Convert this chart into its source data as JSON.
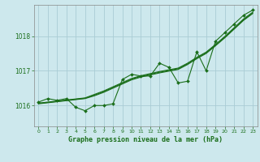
{
  "bg_color": "#cde8ed",
  "grid_color": "#aaccd4",
  "line_color": "#1a6e1a",
  "title": "Graphe pression niveau de la mer (hPa)",
  "xlim": [
    -0.5,
    23.5
  ],
  "ylim": [
    1015.4,
    1018.9
  ],
  "yticks": [
    1016,
    1017,
    1018
  ],
  "xtick_labels": [
    "0",
    "1",
    "2",
    "3",
    "4",
    "5",
    "6",
    "7",
    "8",
    "9",
    "10",
    "11",
    "12",
    "13",
    "14",
    "15",
    "16",
    "17",
    "18",
    "19",
    "20",
    "21",
    "22",
    "23"
  ],
  "main_series": [
    1016.1,
    1016.2,
    1016.15,
    1016.2,
    1015.95,
    1015.85,
    1016.0,
    1016.0,
    1016.05,
    1016.75,
    1016.9,
    1016.85,
    1016.85,
    1017.22,
    1017.1,
    1016.65,
    1016.7,
    1017.55,
    1017.0,
    1017.85,
    1018.1,
    1018.35,
    1018.6,
    1018.75
  ],
  "trend1": [
    1016.05,
    1016.08,
    1016.11,
    1016.14,
    1016.17,
    1016.2,
    1016.28,
    1016.38,
    1016.5,
    1016.62,
    1016.74,
    1016.82,
    1016.88,
    1016.94,
    1016.99,
    1017.04,
    1017.18,
    1017.35,
    1017.5,
    1017.72,
    1017.95,
    1018.2,
    1018.45,
    1018.65
  ],
  "trend2": [
    1016.06,
    1016.09,
    1016.12,
    1016.15,
    1016.18,
    1016.21,
    1016.3,
    1016.4,
    1016.52,
    1016.64,
    1016.76,
    1016.84,
    1016.9,
    1016.96,
    1017.01,
    1017.06,
    1017.2,
    1017.37,
    1017.52,
    1017.74,
    1017.97,
    1018.22,
    1018.47,
    1018.67
  ],
  "trend3": [
    1016.07,
    1016.1,
    1016.13,
    1016.16,
    1016.19,
    1016.22,
    1016.32,
    1016.42,
    1016.54,
    1016.66,
    1016.78,
    1016.86,
    1016.92,
    1016.98,
    1017.03,
    1017.08,
    1017.22,
    1017.39,
    1017.54,
    1017.76,
    1017.99,
    1018.24,
    1018.49,
    1018.69
  ]
}
